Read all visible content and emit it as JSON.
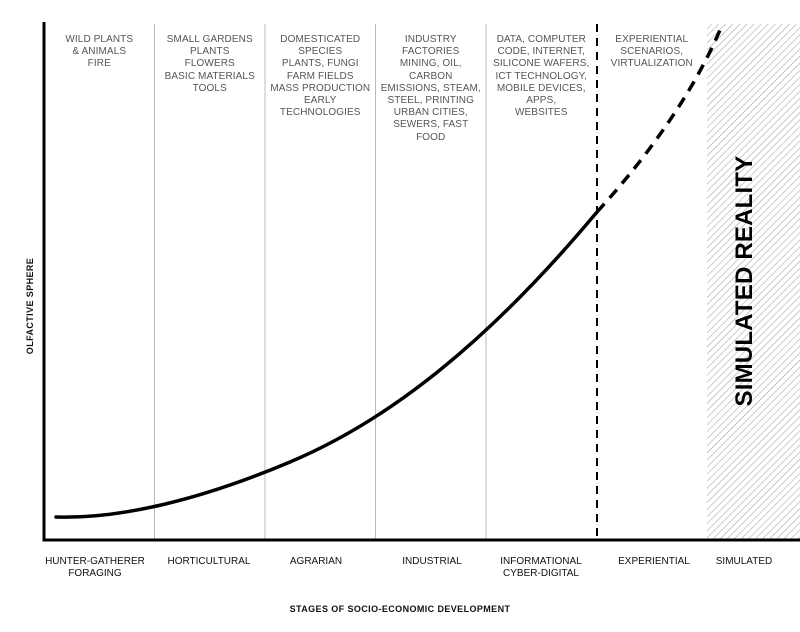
{
  "title": "",
  "x_axis_title": "STAGES OF SOCIO-ECONOMIC DEVELOPMENT",
  "y_axis_title": "OLFACTIVE SPHERE",
  "simulated_region_label": "SIMULATED REALITY",
  "stages": [
    {
      "name": "hunter-gatherer",
      "label_lines": [
        "HUNTER-GATHERER",
        "FORAGING"
      ],
      "items": [
        "WILD PLANTS",
        "& ANIMALS",
        "FIRE"
      ]
    },
    {
      "name": "horticultural",
      "label_lines": [
        "HORTICULTURAL"
      ],
      "items": [
        "SMALL GARDENS",
        "PLANTS",
        "FLOWERS",
        "BASIC MATERIALS",
        "TOOLS"
      ]
    },
    {
      "name": "agrarian",
      "label_lines": [
        "AGRARIAN"
      ],
      "items": [
        "DOMESTICATED",
        "SPECIES",
        "PLANTS, FUNGI",
        "FARM FIELDS",
        "MASS PRODUCTION",
        "EARLY",
        "TECHNOLOGIES"
      ]
    },
    {
      "name": "industrial",
      "label_lines": [
        "INDUSTRIAL"
      ],
      "items": [
        "INDUSTRY",
        "FACTORIES",
        "MINING, OIL,",
        "CARBON",
        "EMISSIONS, STEAM,",
        "STEEL, PRINTING",
        "URBAN CITIES,",
        "SEWERS, FAST",
        "FOOD"
      ]
    },
    {
      "name": "informational",
      "label_lines": [
        "INFORMATIONAL",
        "CYBER-DIGITAL"
      ],
      "items": [
        "DATA, COMPUTER",
        "CODE, INTERNET,",
        "SILICONE WAFERS,",
        "ICT TECHNOLOGY,",
        "MOBILE DEVICES,",
        "APPS,",
        "WEBSITES"
      ]
    },
    {
      "name": "experiential",
      "label_lines": [
        "EXPERIENTIAL"
      ],
      "items": [
        "EXPERIENTIAL",
        "SCENARIOS,",
        "VIRTUALIZATION"
      ]
    },
    {
      "name": "simulated",
      "label_lines": [
        "SIMULATED"
      ],
      "items": []
    }
  ],
  "colors": {
    "axis": "#000000",
    "curve": "#000000",
    "divider": "#bbbbbb",
    "hatch": "#9a9a9a",
    "column_text": "#555555"
  }
}
